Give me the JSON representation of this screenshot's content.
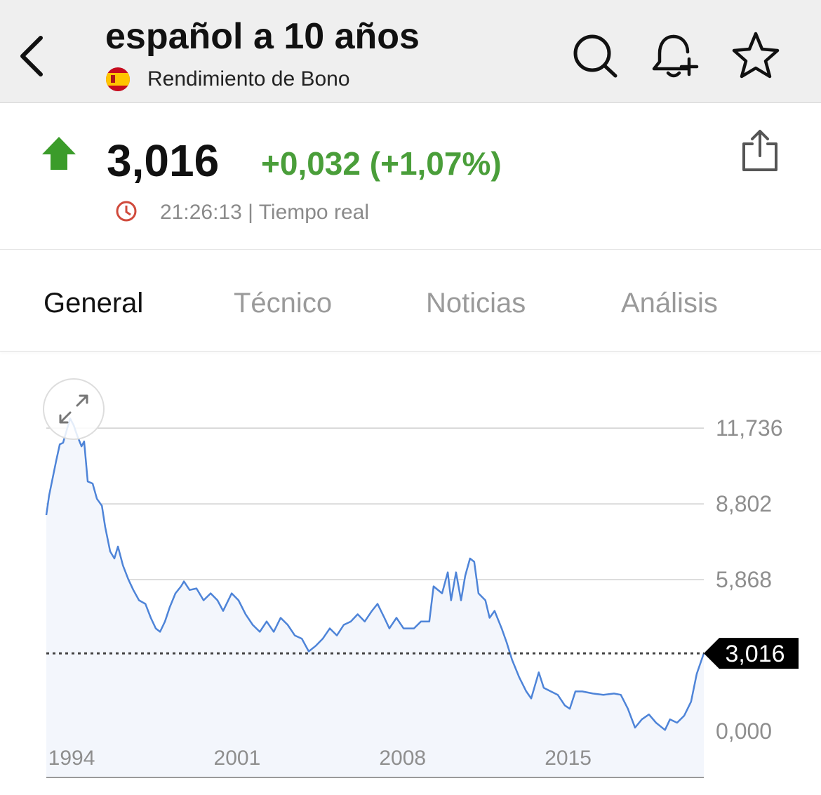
{
  "header": {
    "title": "español a 10 años",
    "subtitle": "Rendimiento de Bono"
  },
  "quote": {
    "price": "3,016",
    "change": "+0,032 (+1,07%)",
    "time": "21:26:13 | Tiempo real"
  },
  "tabs": [
    "General",
    "Técnico",
    "Noticias",
    "Análisis"
  ],
  "chart_data": {
    "type": "line",
    "color": "#4e84d8",
    "x": [
      1992.93,
      1993.05,
      1993.2,
      1993.35,
      1993.5,
      1993.64,
      1993.79,
      1993.94,
      1994.09,
      1994.24,
      1994.42,
      1994.53,
      1994.68,
      1994.89,
      1995.07,
      1995.28,
      1995.42,
      1995.63,
      1995.81,
      1995.96,
      1996.17,
      1996.4,
      1996.61,
      1996.85,
      1997.12,
      1997.35,
      1997.56,
      1997.74,
      1997.95,
      1998.15,
      1998.39,
      1998.63,
      1998.75,
      1998.99,
      1999.28,
      1999.58,
      1999.88,
      2000.17,
      2000.41,
      2000.77,
      2001.06,
      2001.36,
      2001.66,
      2001.96,
      2002.25,
      2002.55,
      2002.84,
      2003.14,
      2003.44,
      2003.74,
      2004.03,
      2004.33,
      2004.62,
      2004.92,
      2005.22,
      2005.51,
      2005.81,
      2006.1,
      2006.4,
      2006.7,
      2006.94,
      2007.23,
      2007.44,
      2007.74,
      2008.04,
      2008.48,
      2008.78,
      2009.13,
      2009.31,
      2009.67,
      2009.91,
      2010.05,
      2010.26,
      2010.47,
      2010.65,
      2010.85,
      2011.03,
      2011.21,
      2011.5,
      2011.68,
      2011.89,
      2012.19,
      2012.4,
      2012.63,
      2012.93,
      2013.23,
      2013.44,
      2013.76,
      2013.97,
      2014.27,
      2014.56,
      2014.86,
      2015.07,
      2015.31,
      2015.6,
      2016.05,
      2016.49,
      2016.94,
      2017.23,
      2017.53,
      2017.83,
      2018.12,
      2018.42,
      2018.72,
      2019.1,
      2019.31,
      2019.61,
      2019.91,
      2020.2,
      2020.44,
      2020.74
    ],
    "values": [
      8.37,
      9.13,
      9.81,
      10.49,
      11.11,
      11.17,
      11.65,
      12.11,
      11.84,
      11.44,
      11.03,
      11.22,
      9.67,
      9.59,
      9.0,
      8.73,
      7.91,
      6.96,
      6.69,
      7.15,
      6.42,
      5.88,
      5.47,
      5.07,
      4.93,
      4.39,
      3.98,
      3.85,
      4.25,
      4.8,
      5.34,
      5.61,
      5.8,
      5.47,
      5.53,
      5.07,
      5.34,
      5.07,
      4.66,
      5.34,
      5.07,
      4.53,
      4.12,
      3.85,
      4.25,
      3.85,
      4.39,
      4.12,
      3.71,
      3.58,
      3.09,
      3.31,
      3.58,
      3.98,
      3.71,
      4.12,
      4.25,
      4.53,
      4.25,
      4.66,
      4.93,
      4.39,
      3.98,
      4.39,
      3.98,
      3.98,
      4.25,
      4.25,
      5.61,
      5.34,
      6.15,
      5.07,
      6.15,
      5.07,
      6.02,
      6.69,
      6.56,
      5.34,
      5.07,
      4.39,
      4.66,
      3.98,
      3.44,
      2.76,
      2.09,
      1.54,
      1.27,
      2.28,
      1.68,
      1.54,
      1.41,
      1.0,
      0.87,
      1.54,
      1.54,
      1.46,
      1.41,
      1.46,
      1.41,
      0.87,
      0.14,
      0.46,
      0.65,
      0.33,
      0.05,
      0.46,
      0.33,
      0.6,
      1.14,
      2.22,
      3.016
    ],
    "xlim": [
      1992.93,
      2020.74
    ],
    "xticks": [
      1994,
      2001,
      2008,
      2015
    ],
    "ylim": [
      -1.79,
      12.5
    ],
    "yticks": [
      {
        "value": 0,
        "label": "0,000"
      },
      {
        "value": 5.868,
        "label": "5,868"
      },
      {
        "value": 8.802,
        "label": "8,802"
      },
      {
        "value": 11.736,
        "label": "11,736"
      }
    ],
    "grid": true,
    "reference": {
      "value": 3.016,
      "label": "3,016"
    }
  }
}
